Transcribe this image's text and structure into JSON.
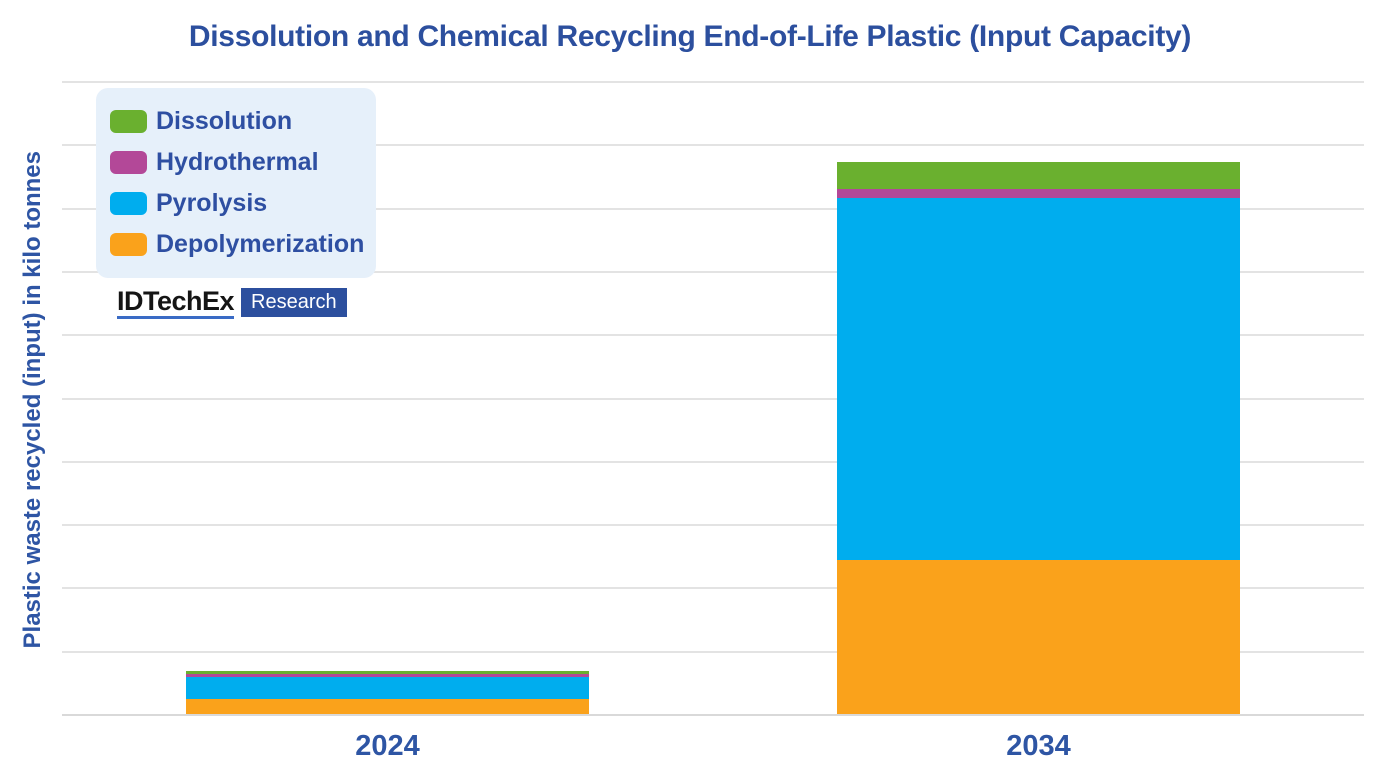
{
  "title": "Dissolution and Chemical Recycling End-of-Life Plastic (Input Capacity)",
  "logo": {
    "brand": "IDTechEx",
    "sub": "Research"
  },
  "colors": {
    "title_text": "#2C4F9E",
    "axis_text": "#2E55A4",
    "legend_text": "#2E4FA2",
    "legend_bg": "#E6F0FA",
    "gridline": "#E3E3E3",
    "background": "#FFFFFF",
    "logo_underline": "#3A6BC5",
    "logo_badge_bg": "#2C4F9E",
    "logo_badge_text": "#FFFFFF"
  },
  "chart_data": {
    "type": "bar",
    "stacked": true,
    "title": "Dissolution and Chemical Recycling End-of-Life Plastic (Input Capacity)",
    "xlabel": "",
    "ylabel": "Plastic waste recycled (input) in kilo tonnes",
    "categories": [
      "2024",
      "2034"
    ],
    "series": [
      {
        "name": "Dissolution",
        "color": "#6AB02F",
        "values": [
          45,
          420
        ]
      },
      {
        "name": "Hydrothermal",
        "color": "#B34898",
        "values": [
          40,
          150
        ]
      },
      {
        "name": "Pyrolysis",
        "color": "#00ADEE",
        "values": [
          350,
          5710
        ]
      },
      {
        "name": "Depolymerization",
        "color": "#FAA21B",
        "values": [
          240,
          2440
        ]
      }
    ],
    "stack_order_bottom_to_top": [
      "Depolymerization",
      "Pyrolysis",
      "Hydrothermal",
      "Dissolution"
    ],
    "totals_estimated": [
      675,
      8720
    ],
    "ylim": [
      0,
      10000
    ],
    "gridline_step": 1000,
    "y_tick_labels_visible": false,
    "grid": true,
    "legend_position": "top-left",
    "note": "Y-axis has no numeric tick labels; values estimated assuming 1000 kilo tonnes per gridline interval."
  }
}
